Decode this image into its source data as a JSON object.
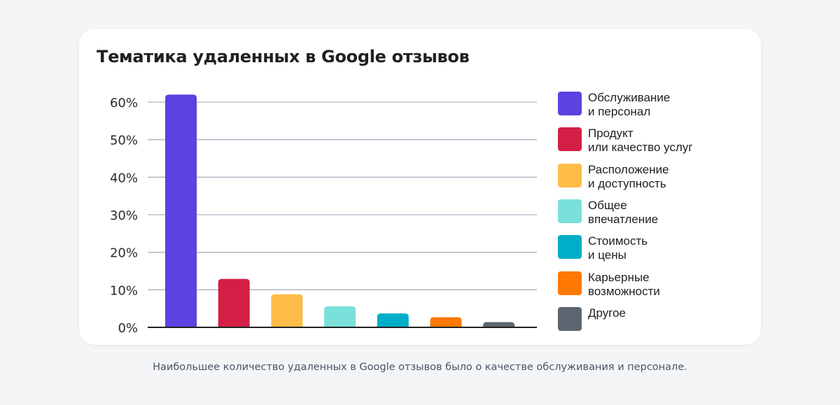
{
  "chart_data": {
    "type": "bar",
    "title": "Тематика удаленных в Google отзывов",
    "categories": [
      "Обслуживание и персонал",
      "Продукт или качество услуг",
      "Расположение и доступность",
      "Общее впечатление",
      "Стоимость и цены",
      "Карьерные возможности",
      "Другое"
    ],
    "values": [
      62,
      12.9,
      8.8,
      5.6,
      3.7,
      2.7,
      1.4
    ],
    "colors": [
      "#5a43e0",
      "#d31f46",
      "#fdbd48",
      "#79e1da",
      "#00aec8",
      "#ff7800",
      "#5c6670"
    ],
    "yticks": [
      "0%",
      "10%",
      "20%",
      "30%",
      "40%",
      "50%",
      "60%"
    ],
    "ytick_values": [
      0,
      10,
      20,
      30,
      40,
      50,
      60
    ],
    "ylim": [
      0,
      60
    ],
    "xlabel": "",
    "ylabel": "",
    "grid": true,
    "legend_position": "right",
    "legend": [
      "Обслуживание\nи персонал",
      "Продукт\nили качество услуг",
      "Расположение\nи доступность",
      "Общее\nвпечатление",
      "Стоимость\nи цены",
      "Карьерные\nвозможности",
      "Другое"
    ]
  },
  "caption": "Наибольшее количество удаленных в Google отзывов было о качестве обслуживания и персонале."
}
